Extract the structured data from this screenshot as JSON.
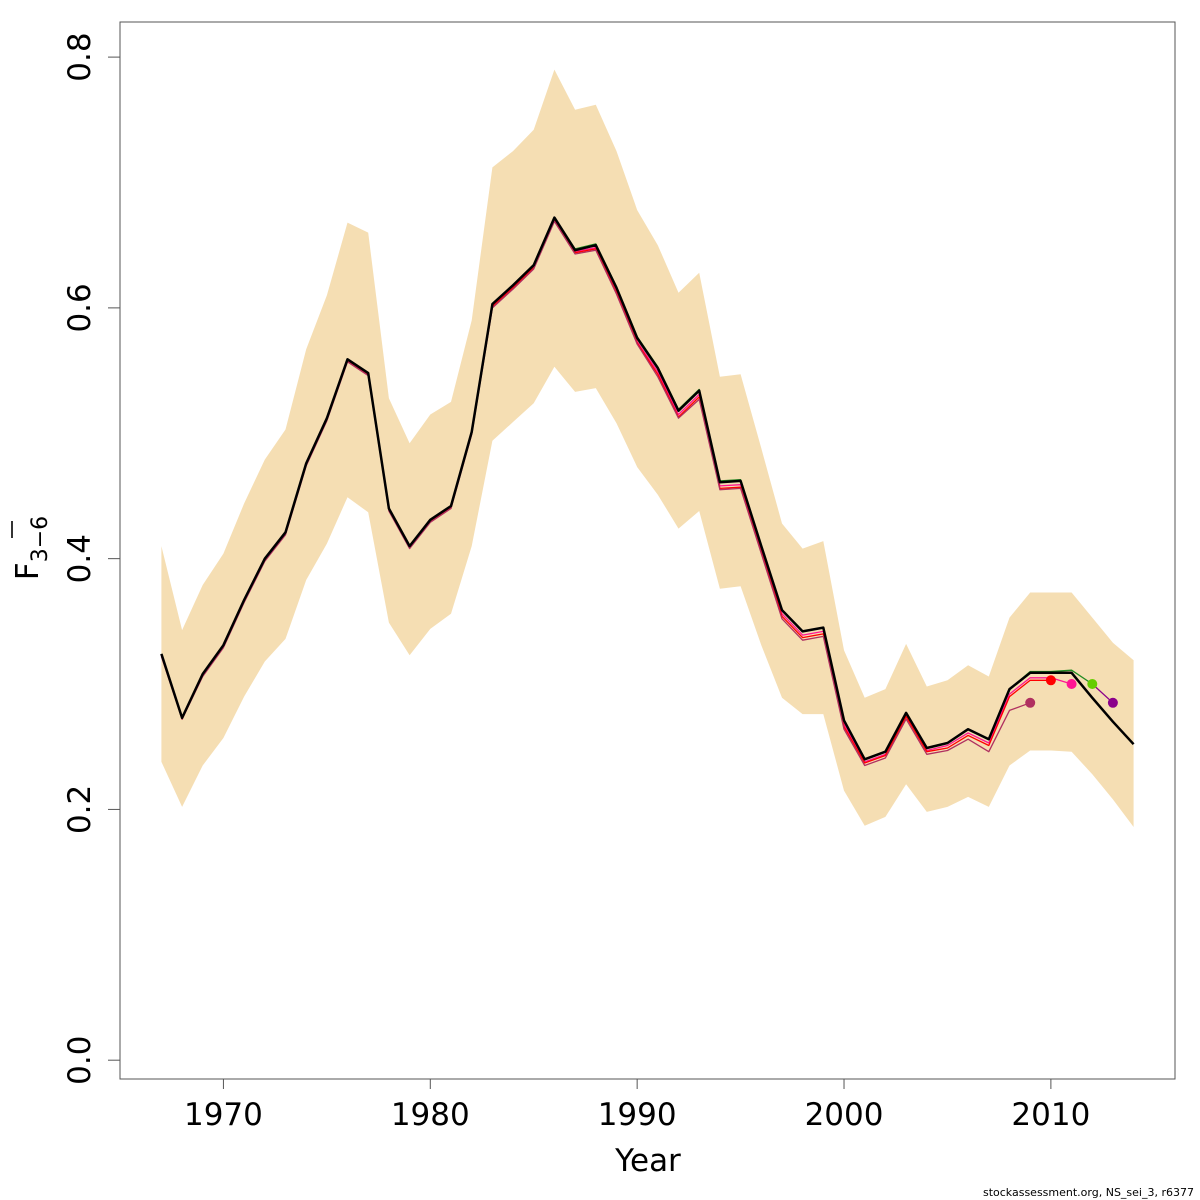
{
  "chart_data": {
    "type": "line",
    "xlabel": "Year",
    "ylabel_main": "F",
    "ylabel_sub": "3−6",
    "xlim": [
      1965,
      2016
    ],
    "ylim": [
      -0.015,
      0.828
    ],
    "xticks": [
      {
        "value": 1970,
        "label": "1970"
      },
      {
        "value": 1980,
        "label": "1980"
      },
      {
        "value": 1990,
        "label": "1990"
      },
      {
        "value": 2000,
        "label": "2000"
      },
      {
        "value": 2010,
        "label": "2010"
      }
    ],
    "yticks": [
      {
        "value": 0.0,
        "label": "0.0"
      },
      {
        "value": 0.2,
        "label": "0.2"
      },
      {
        "value": 0.4,
        "label": "0.4"
      },
      {
        "value": 0.6,
        "label": "0.6"
      },
      {
        "value": 0.8,
        "label": "0.8"
      }
    ],
    "band": {
      "color": "#f5deb3",
      "x": [
        1967,
        1968,
        1969,
        1970,
        1971,
        1972,
        1973,
        1974,
        1975,
        1976,
        1977,
        1978,
        1979,
        1980,
        1981,
        1982,
        1983,
        1984,
        1985,
        1986,
        1987,
        1988,
        1989,
        1990,
        1991,
        1992,
        1993,
        1994,
        1995,
        1996,
        1997,
        1998,
        1999,
        2000,
        2001,
        2002,
        2003,
        2004,
        2005,
        2006,
        2007,
        2008,
        2009,
        2010,
        2011,
        2012,
        2013,
        2014
      ],
      "upper": [
        0.41,
        0.343,
        0.379,
        0.404,
        0.444,
        0.479,
        0.503,
        0.567,
        0.61,
        0.668,
        0.66,
        0.528,
        0.492,
        0.515,
        0.525,
        0.59,
        0.712,
        0.725,
        0.742,
        0.79,
        0.758,
        0.762,
        0.725,
        0.678,
        0.65,
        0.612,
        0.628,
        0.545,
        0.547,
        0.488,
        0.428,
        0.408,
        0.414,
        0.327,
        0.289,
        0.296,
        0.332,
        0.298,
        0.303,
        0.315,
        0.306,
        0.353,
        0.373,
        0.373,
        0.373,
        0.353,
        0.333,
        0.319
      ],
      "lower": [
        0.238,
        0.202,
        0.235,
        0.257,
        0.29,
        0.318,
        0.336,
        0.383,
        0.412,
        0.449,
        0.437,
        0.349,
        0.323,
        0.344,
        0.356,
        0.41,
        0.494,
        0.509,
        0.524,
        0.553,
        0.533,
        0.536,
        0.508,
        0.473,
        0.451,
        0.424,
        0.438,
        0.376,
        0.378,
        0.331,
        0.289,
        0.276,
        0.276,
        0.215,
        0.187,
        0.194,
        0.22,
        0.198,
        0.202,
        0.21,
        0.202,
        0.235,
        0.247,
        0.247,
        0.246,
        0.228,
        0.208,
        0.186
      ]
    },
    "series": [
      {
        "color": "#000000",
        "width": 2.5,
        "x": [
          1967,
          1968,
          1969,
          1970,
          1971,
          1972,
          1973,
          1974,
          1975,
          1976,
          1977,
          1978,
          1979,
          1980,
          1981,
          1982,
          1983,
          1984,
          1985,
          1986,
          1987,
          1988,
          1989,
          1990,
          1991,
          1992,
          1993,
          1994,
          1995,
          1996,
          1997,
          1998,
          1999,
          2000,
          2001,
          2002,
          2003,
          2004,
          2005,
          2006,
          2007,
          2008,
          2009,
          2010,
          2011,
          2012,
          2013,
          2014
        ],
        "y": [
          0.324,
          0.273,
          0.308,
          0.331,
          0.367,
          0.4,
          0.421,
          0.476,
          0.512,
          0.559,
          0.548,
          0.44,
          0.41,
          0.431,
          0.442,
          0.501,
          0.603,
          0.618,
          0.634,
          0.672,
          0.646,
          0.65,
          0.616,
          0.576,
          0.552,
          0.518,
          0.534,
          0.461,
          0.462,
          0.41,
          0.359,
          0.342,
          0.345,
          0.271,
          0.24,
          0.246,
          0.277,
          0.249,
          0.253,
          0.264,
          0.256,
          0.296,
          0.309,
          0.309,
          0.309,
          0.289,
          0.27,
          0.252
        ]
      },
      {
        "color": "#228b22",
        "width": 1.3,
        "x": [
          1967,
          1968,
          1969,
          1970,
          1971,
          1972,
          1973,
          1974,
          1975,
          1976,
          1977,
          1978,
          1979,
          1980,
          1981,
          1982,
          1983,
          1984,
          1985,
          1986,
          1987,
          1988,
          1989,
          1990,
          1991,
          1992,
          1993,
          1994,
          1995,
          1996,
          1997,
          1998,
          1999,
          2000,
          2001,
          2002,
          2003,
          2004,
          2005,
          2006,
          2007,
          2008,
          2009,
          2010,
          2011,
          2012
        ],
        "y": [
          0.324,
          0.273,
          0.308,
          0.331,
          0.367,
          0.4,
          0.421,
          0.476,
          0.512,
          0.559,
          0.548,
          0.44,
          0.41,
          0.431,
          0.442,
          0.501,
          0.603,
          0.618,
          0.634,
          0.672,
          0.647,
          0.651,
          0.617,
          0.577,
          0.553,
          0.519,
          0.535,
          0.462,
          0.463,
          0.41,
          0.359,
          0.342,
          0.345,
          0.271,
          0.24,
          0.246,
          0.277,
          0.249,
          0.253,
          0.264,
          0.256,
          0.296,
          0.31,
          0.31,
          0.311,
          0.3
        ]
      },
      {
        "color": "#ff1493",
        "width": 1.3,
        "x": [
          1967,
          1968,
          1969,
          1970,
          1971,
          1972,
          1973,
          1974,
          1975,
          1976,
          1977,
          1978,
          1979,
          1980,
          1981,
          1982,
          1983,
          1984,
          1985,
          1986,
          1987,
          1988,
          1989,
          1990,
          1991,
          1992,
          1993,
          1994,
          1995,
          1996,
          1997,
          1998,
          1999,
          2000,
          2001,
          2002,
          2003,
          2004,
          2005,
          2006,
          2007,
          2008,
          2009,
          2010,
          2011
        ],
        "y": [
          0.323,
          0.272,
          0.307,
          0.33,
          0.366,
          0.399,
          0.42,
          0.475,
          0.511,
          0.558,
          0.547,
          0.439,
          0.409,
          0.43,
          0.441,
          0.5,
          0.602,
          0.617,
          0.633,
          0.671,
          0.645,
          0.648,
          0.613,
          0.573,
          0.549,
          0.515,
          0.531,
          0.458,
          0.459,
          0.407,
          0.356,
          0.339,
          0.342,
          0.268,
          0.238,
          0.244,
          0.275,
          0.247,
          0.251,
          0.261,
          0.253,
          0.292,
          0.305,
          0.305,
          0.3
        ]
      },
      {
        "color": "#ff0000",
        "width": 1.3,
        "x": [
          1967,
          1968,
          1969,
          1970,
          1971,
          1972,
          1973,
          1974,
          1975,
          1976,
          1977,
          1978,
          1979,
          1980,
          1981,
          1982,
          1983,
          1984,
          1985,
          1986,
          1987,
          1988,
          1989,
          1990,
          1991,
          1992,
          1993,
          1994,
          1995,
          1996,
          1997,
          1998,
          1999,
          2000,
          2001,
          2002,
          2003,
          2004,
          2005,
          2006,
          2007,
          2008,
          2009,
          2010
        ],
        "y": [
          0.323,
          0.272,
          0.307,
          0.33,
          0.366,
          0.399,
          0.42,
          0.475,
          0.511,
          0.558,
          0.547,
          0.439,
          0.409,
          0.43,
          0.441,
          0.5,
          0.601,
          0.616,
          0.632,
          0.67,
          0.644,
          0.647,
          0.612,
          0.572,
          0.547,
          0.513,
          0.529,
          0.456,
          0.457,
          0.405,
          0.354,
          0.337,
          0.34,
          0.266,
          0.237,
          0.243,
          0.274,
          0.246,
          0.249,
          0.259,
          0.251,
          0.29,
          0.303,
          0.303
        ]
      },
      {
        "color": "#b03060",
        "width": 1.3,
        "x": [
          1967,
          1968,
          1969,
          1970,
          1971,
          1972,
          1973,
          1974,
          1975,
          1976,
          1977,
          1978,
          1979,
          1980,
          1981,
          1982,
          1983,
          1984,
          1985,
          1986,
          1987,
          1988,
          1989,
          1990,
          1991,
          1992,
          1993,
          1994,
          1995,
          1996,
          1997,
          1998,
          1999,
          2000,
          2001,
          2002,
          2003,
          2004,
          2005,
          2006,
          2007,
          2008,
          2009
        ],
        "y": [
          0.322,
          0.272,
          0.306,
          0.329,
          0.365,
          0.398,
          0.419,
          0.474,
          0.51,
          0.557,
          0.546,
          0.438,
          0.408,
          0.429,
          0.44,
          0.499,
          0.6,
          0.615,
          0.631,
          0.669,
          0.643,
          0.646,
          0.611,
          0.571,
          0.545,
          0.512,
          0.527,
          0.455,
          0.456,
          0.404,
          0.352,
          0.335,
          0.338,
          0.264,
          0.235,
          0.241,
          0.272,
          0.244,
          0.247,
          0.256,
          0.246,
          0.279,
          0.285
        ]
      },
      {
        "color": "#8b008b",
        "width": 1.3,
        "x": [
          2012,
          2013
        ],
        "y": [
          0.3,
          0.285
        ]
      }
    ],
    "endpoints": [
      {
        "x": 2009,
        "y": 0.285,
        "color": "#b03060"
      },
      {
        "x": 2010,
        "y": 0.303,
        "color": "#ff0000"
      },
      {
        "x": 2011,
        "y": 0.3,
        "color": "#ff1493"
      },
      {
        "x": 2012,
        "y": 0.3,
        "color": "#66cd00"
      },
      {
        "x": 2013,
        "y": 0.285,
        "color": "#8b008b"
      }
    ]
  },
  "footer": "stockassessment.org, NS_sei_3, r6377"
}
